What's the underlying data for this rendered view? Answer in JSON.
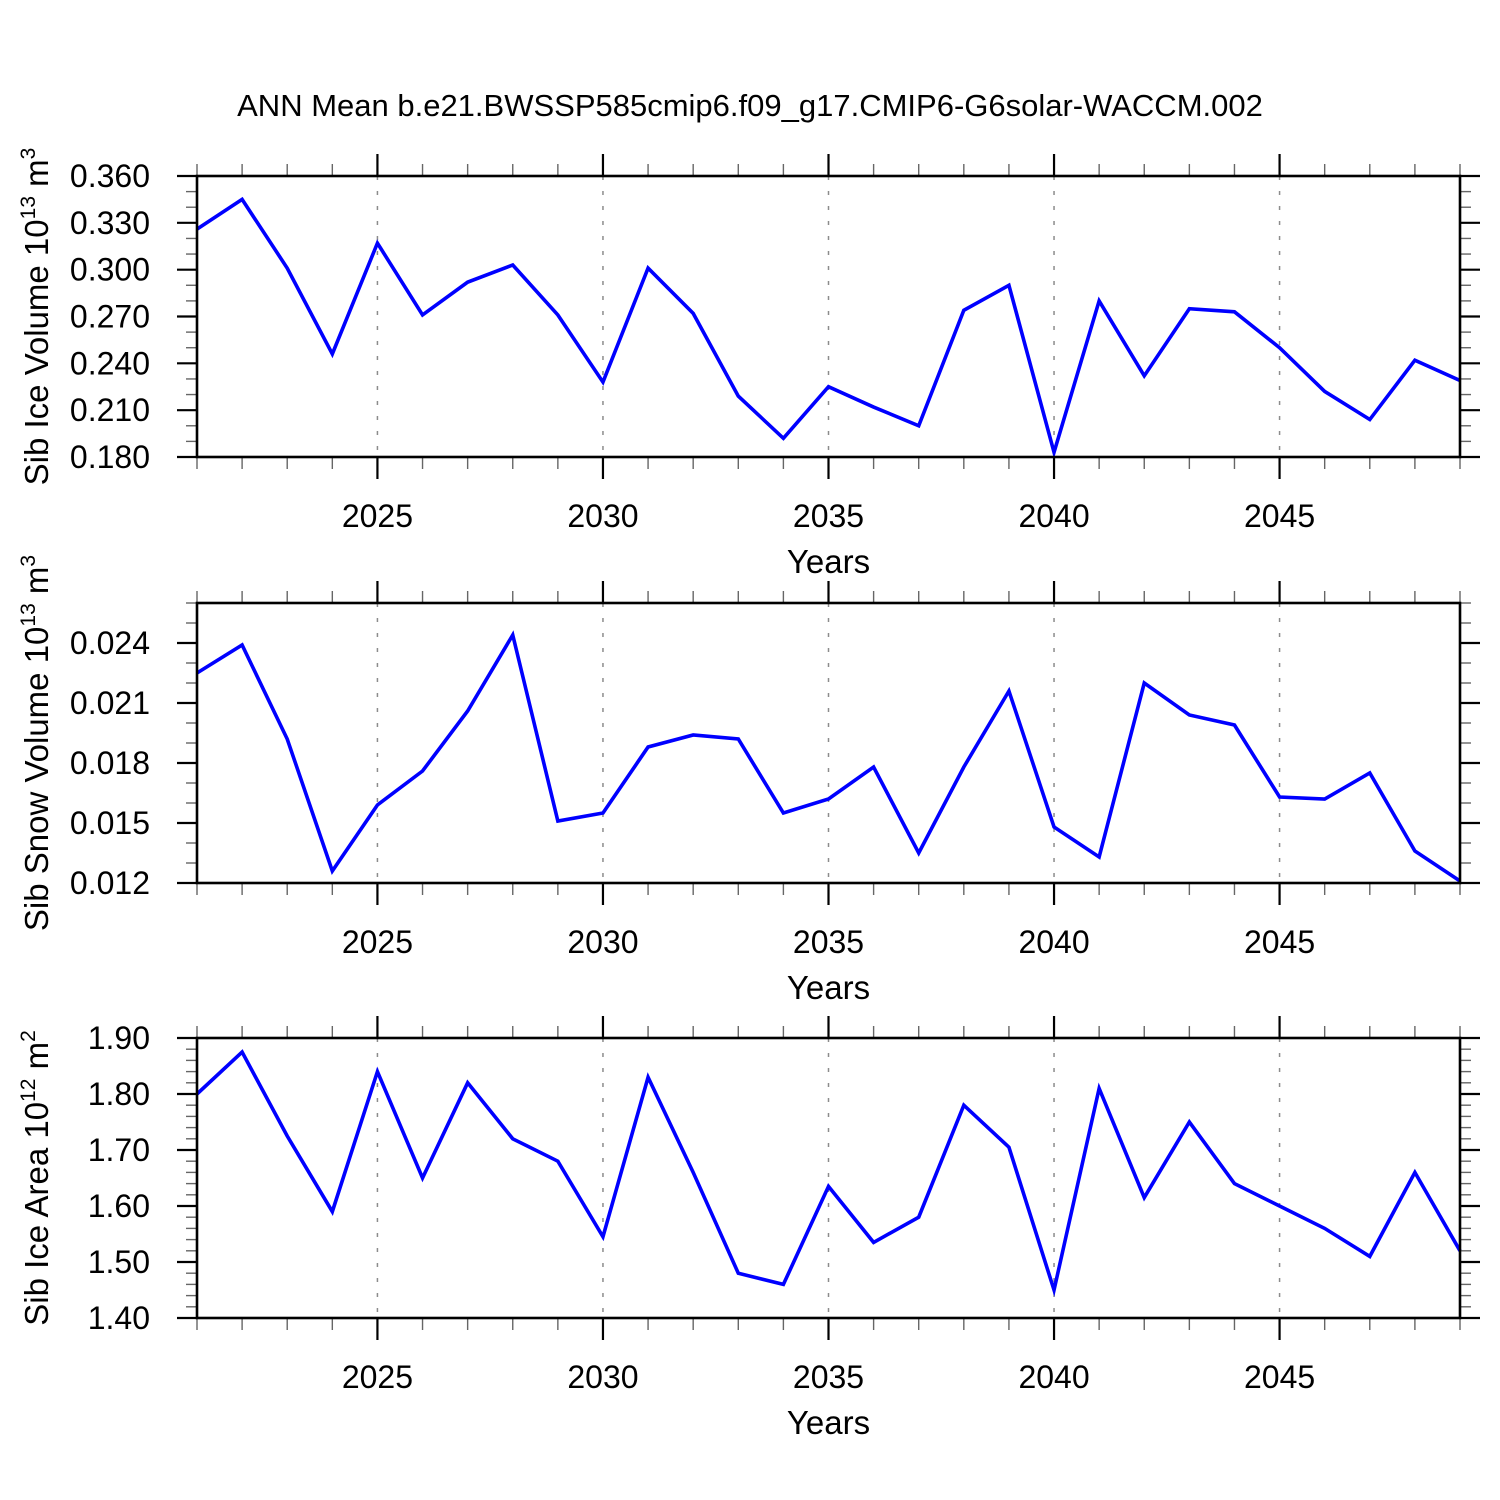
{
  "title": "ANN Mean b.e21.BWSSP585cmip6.f09_g17.CMIP6-G6solar-WACCM.002",
  "colors": {
    "line": "#0000ff",
    "gridline": "#8c8c8c",
    "axis": "#000000",
    "minor_tick": "#666666",
    "background": "#ffffff"
  },
  "chart_data": [
    {
      "id": "sib-ice-volume",
      "type": "line",
      "ylabel": "Sib Ice Volume 10^13 m^3",
      "xlabel": "Years",
      "x": [
        2021,
        2022,
        2023,
        2024,
        2025,
        2026,
        2027,
        2028,
        2029,
        2030,
        2031,
        2032,
        2033,
        2034,
        2035,
        2036,
        2037,
        2038,
        2039,
        2040,
        2041,
        2042,
        2043,
        2044,
        2045,
        2046,
        2047,
        2048,
        2049
      ],
      "values": [
        0.326,
        0.345,
        0.301,
        0.246,
        0.317,
        0.271,
        0.292,
        0.303,
        0.271,
        0.228,
        0.301,
        0.272,
        0.219,
        0.192,
        0.225,
        0.212,
        0.2,
        0.274,
        0.29,
        0.183,
        0.28,
        0.232,
        0.275,
        0.273,
        0.25,
        0.222,
        0.204,
        0.242,
        0.229
      ],
      "xlim": [
        2021,
        2049
      ],
      "ylim": [
        0.18,
        0.36
      ],
      "ytick_step": 0.03,
      "ytick_minor_step": 0.01,
      "ytick_labels": [
        "0.180",
        "0.210",
        "0.240",
        "0.270",
        "0.300",
        "0.330",
        "0.360"
      ],
      "xticks_major": [
        2025,
        2030,
        2035,
        2040,
        2045
      ],
      "xtick_labels": [
        "2025",
        "2030",
        "2035",
        "2040",
        "2045"
      ],
      "grid": "vertical-dashed",
      "legend": "none"
    },
    {
      "id": "sib-snow-volume",
      "type": "line",
      "ylabel": "Sib Snow Volume 10^13 m^3",
      "xlabel": "Years",
      "x": [
        2021,
        2022,
        2023,
        2024,
        2025,
        2026,
        2027,
        2028,
        2029,
        2030,
        2031,
        2032,
        2033,
        2034,
        2035,
        2036,
        2037,
        2038,
        2039,
        2040,
        2041,
        2042,
        2043,
        2044,
        2045,
        2046,
        2047,
        2048,
        2049
      ],
      "values": [
        0.0225,
        0.0239,
        0.0192,
        0.0126,
        0.0159,
        0.0176,
        0.0206,
        0.0244,
        0.0151,
        0.0155,
        0.0188,
        0.0194,
        0.0192,
        0.0155,
        0.0162,
        0.0178,
        0.0135,
        0.0178,
        0.0216,
        0.0148,
        0.0133,
        0.022,
        0.0204,
        0.0199,
        0.0163,
        0.0162,
        0.0175,
        0.0136,
        0.0121
      ],
      "xlim": [
        2021,
        2049
      ],
      "ylim": [
        0.012,
        0.026
      ],
      "ytick_step": 0.003,
      "ytick_minor_step": 0.001,
      "ytick_labels": [
        "0.012",
        "0.015",
        "0.018",
        "0.021",
        "0.024"
      ],
      "xticks_major": [
        2025,
        2030,
        2035,
        2040,
        2045
      ],
      "xtick_labels": [
        "2025",
        "2030",
        "2035",
        "2040",
        "2045"
      ],
      "grid": "vertical-dashed",
      "legend": "none"
    },
    {
      "id": "sib-ice-area",
      "type": "line",
      "ylabel": "Sib Ice Area 10^12 m^2",
      "xlabel": "Years",
      "x": [
        2021,
        2022,
        2023,
        2024,
        2025,
        2026,
        2027,
        2028,
        2029,
        2030,
        2031,
        2032,
        2033,
        2034,
        2035,
        2036,
        2037,
        2038,
        2039,
        2040,
        2041,
        2042,
        2043,
        2044,
        2045,
        2046,
        2047,
        2048,
        2049
      ],
      "values": [
        1.8,
        1.875,
        1.725,
        1.59,
        1.84,
        1.65,
        1.82,
        1.72,
        1.68,
        1.545,
        1.83,
        1.66,
        1.48,
        1.46,
        1.635,
        1.535,
        1.58,
        1.78,
        1.705,
        1.45,
        1.81,
        1.615,
        1.75,
        1.64,
        1.6,
        1.56,
        1.51,
        1.66,
        1.52
      ],
      "xlim": [
        2021,
        2049
      ],
      "ylim": [
        1.4,
        1.9
      ],
      "ytick_step": 0.1,
      "ytick_minor_step": 0.02,
      "ytick_labels": [
        "1.40",
        "1.50",
        "1.60",
        "1.70",
        "1.80",
        "1.90"
      ],
      "xticks_major": [
        2025,
        2030,
        2035,
        2040,
        2045
      ],
      "xtick_labels": [
        "2025",
        "2030",
        "2035",
        "2040",
        "2045"
      ],
      "grid": "vertical-dashed",
      "legend": "none"
    }
  ]
}
